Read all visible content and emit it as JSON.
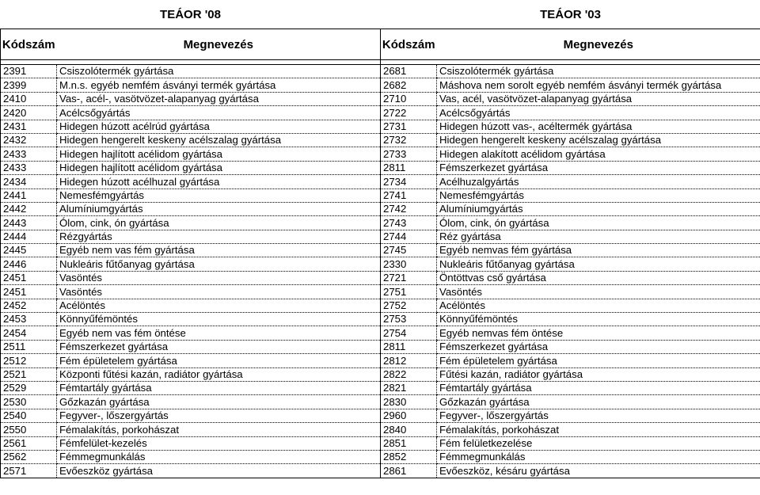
{
  "header": {
    "left_group": "TEÁOR '08",
    "right_group": "TEÁOR '03",
    "col_code": "Kódszám",
    "col_name": "Megnevezés"
  },
  "rows": [
    [
      "2391",
      "Csiszolótermék gyártása",
      "2681",
      "Csiszolótermék gyártása"
    ],
    [
      "2399",
      "M.n.s. egyéb nemfém ásványi termék gyártása",
      "2682",
      "Máshova nem sorolt egyéb nemfém ásványi termék gyártása"
    ],
    [
      "2410",
      "Vas-, acél-, vasötvözet-alapanyag gyártása",
      "2710",
      "Vas, acél, vasötvözet-alapanyag gyártása"
    ],
    [
      "2420",
      "Acélcsőgyártás",
      "2722",
      "Acélcsőgyártás"
    ],
    [
      "2431",
      "Hidegen húzott acélrúd gyártása",
      "2731",
      "Hidegen húzott vas-, acéltermék gyártása"
    ],
    [
      "2432",
      "Hidegen hengerelt keskeny acélszalag gyártása",
      "2732",
      "Hidegen hengerelt keskeny acélszalag gyártása"
    ],
    [
      "2433",
      "Hidegen hajlított acélidom gyártása",
      "2733",
      "Hidegen alakított acélidom gyártása"
    ],
    [
      "2433",
      "Hidegen hajlított acélidom gyártása",
      "2811",
      "Fémszerkezet gyártása"
    ],
    [
      "2434",
      "Hidegen húzott acélhuzal gyártása",
      "2734",
      "Acélhuzalgyártás"
    ],
    [
      "2441",
      "Nemesfémgyártás",
      "2741",
      "Nemesfémgyártás"
    ],
    [
      "2442",
      "Alumíniumgyártás",
      "2742",
      "Alumíniumgyártás"
    ],
    [
      "2443",
      "Ólom, cink, ón gyártása",
      "2743",
      "Ólom, cink, ón gyártása"
    ],
    [
      "2444",
      "Rézgyártás",
      "2744",
      "Réz gyártása"
    ],
    [
      "2445",
      "Egyéb nem vas fém gyártása",
      "2745",
      "Egyéb nemvas fém gyártása"
    ],
    [
      "2446",
      "Nukleáris fűtőanyag gyártása",
      "2330",
      "Nukleáris fűtőanyag gyártása"
    ],
    [
      "2451",
      "Vasöntés",
      "2721",
      "Öntöttvas cső gyártása"
    ],
    [
      "2451",
      "Vasöntés",
      "2751",
      "Vasöntés"
    ],
    [
      "2452",
      "Acélöntés",
      "2752",
      "Acélöntés"
    ],
    [
      "2453",
      "Könnyűfémöntés",
      "2753",
      "Könnyűfémöntés"
    ],
    [
      "2454",
      "Egyéb nem vas fém öntése",
      "2754",
      "Egyéb nemvas fém öntése"
    ],
    [
      "2511",
      "Fémszerkezet gyártása",
      "2811",
      "Fémszerkezet gyártása"
    ],
    [
      "2512",
      "Fém épületelem gyártása",
      "2812",
      "Fém épületelem gyártása"
    ],
    [
      "2521",
      "Központi fűtési kazán, radiátor gyártása",
      "2822",
      "Fűtési kazán, radiátor gyártása"
    ],
    [
      "2529",
      "Fémtartály gyártása",
      "2821",
      "Fémtartály gyártása"
    ],
    [
      "2530",
      "Gőzkazán gyártása",
      "2830",
      "Gőzkazán gyártása"
    ],
    [
      "2540",
      "Fegyver-, lőszergyártás",
      "2960",
      "Fegyver-, lőszergyártás"
    ],
    [
      "2550",
      "Fémalakítás, porkohászat",
      "2840",
      "Fémalakítás, porkohászat"
    ],
    [
      "2561",
      "Fémfelület-kezelés",
      "2851",
      "Fém felületkezelése"
    ],
    [
      "2562",
      "Fémmegmunkálás",
      "2852",
      "Fémmegmunkálás"
    ],
    [
      "2571",
      "Evőeszköz gyártása",
      "2861",
      "Evőeszköz, késáru gyártása"
    ]
  ]
}
